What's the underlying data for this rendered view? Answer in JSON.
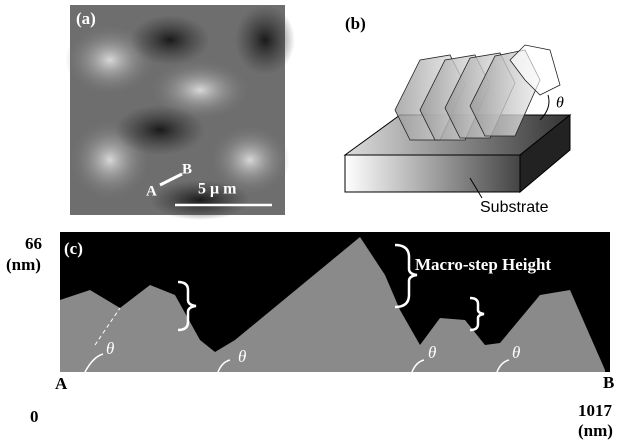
{
  "panel_a": {
    "label": "(a)",
    "point_a": "A",
    "point_b": "B",
    "scale_bar": "5 μ m"
  },
  "panel_b": {
    "label": "(b)",
    "angle": "θ",
    "substrate": "Substrate"
  },
  "panel_c": {
    "label": "(c)",
    "y_max": "66",
    "y_unit": "(nm)",
    "annotation": "Macro-step Height",
    "angles": [
      "θ",
      "θ",
      "θ",
      "θ"
    ],
    "point_a": "A",
    "point_b": "B",
    "x_min": "0",
    "x_max": "1017",
    "x_unit": "(nm)"
  }
}
